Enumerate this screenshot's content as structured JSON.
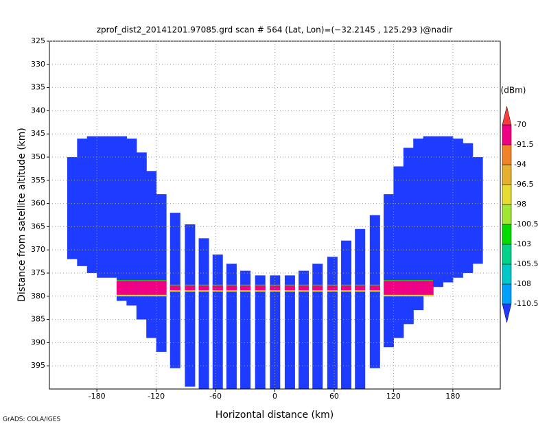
{
  "chart_data": {
    "type": "swath",
    "title": "zprof_dist2_20141201.97085.grd  scan # 564  (Lat, Lon)=(−32.2145 , 125.293 )@nadir",
    "xlabel": "Horizontal distance (km)",
    "ylabel": "Distance from satellite altitude (km)",
    "footer": "GrADS: COLA/IGES",
    "xlim": [
      -228,
      228
    ],
    "ylim": [
      400,
      325
    ],
    "xticks": [
      -180,
      -120,
      -60,
      0,
      60,
      120,
      180
    ],
    "yticks": [
      325,
      330,
      335,
      340,
      345,
      350,
      355,
      360,
      365,
      370,
      375,
      380,
      385,
      390,
      395
    ],
    "grid": true,
    "beams": {
      "x": [
        -205,
        -195,
        -185,
        -175,
        -165,
        -155,
        -145,
        -135,
        -125,
        -115,
        -101,
        -86,
        -72,
        -58,
        -44,
        -30,
        -15,
        0,
        15,
        29,
        43,
        58,
        72,
        86,
        101,
        115,
        125,
        135,
        145,
        155,
        165,
        175,
        185,
        195,
        205
      ],
      "top": [
        350,
        346,
        345.5,
        345.5,
        345.5,
        345.5,
        346,
        349,
        353,
        358,
        362,
        364.5,
        367.5,
        371,
        373,
        374.5,
        375.5,
        375.5,
        375.5,
        374.5,
        373,
        371.5,
        368,
        365.5,
        362.5,
        358,
        352,
        348,
        346,
        345.5,
        345.5,
        345.5,
        346,
        347,
        350
      ],
      "bottom": [
        372,
        373.5,
        375,
        376,
        376,
        381,
        382,
        385,
        389,
        392,
        395.5,
        399.5,
        400,
        400,
        400,
        400,
        400,
        400,
        400,
        400,
        400,
        400,
        400,
        400,
        395.5,
        391,
        389,
        386,
        383,
        380,
        378,
        377,
        376,
        375,
        373
      ],
      "surface_top": [
        null,
        null,
        null,
        null,
        null,
        376.5,
        376.5,
        376.5,
        376.5,
        376.5,
        377.5,
        377.5,
        377.5,
        377.5,
        377.5,
        377.5,
        377.5,
        377.5,
        377.5,
        377.5,
        377.5,
        377.5,
        377.5,
        377.5,
        377.5,
        376.5,
        376.5,
        376.5,
        376.5,
        376.5,
        null,
        null,
        null,
        null,
        null
      ],
      "surface_bottom": [
        null,
        null,
        null,
        null,
        null,
        380,
        380,
        380,
        380,
        380,
        379,
        379,
        379,
        379,
        379,
        379,
        379,
        379,
        379,
        379,
        379,
        379,
        379,
        379,
        379,
        380,
        380,
        380,
        380,
        380,
        null,
        null,
        null,
        null,
        null
      ]
    },
    "colorbar": {
      "label": "(dBm)",
      "levels": [
        -110.5,
        -108,
        -105.5,
        -103,
        -100.5,
        -98,
        -96.5,
        -94,
        -91.5,
        -70
      ],
      "colors": [
        "#1e3cff",
        "#00a0ff",
        "#00c8c8",
        "#00d28c",
        "#00dc00",
        "#a0e632",
        "#e6dc32",
        "#e6af2d",
        "#f08228",
        "#f00082",
        "#fa3c3c"
      ]
    }
  }
}
